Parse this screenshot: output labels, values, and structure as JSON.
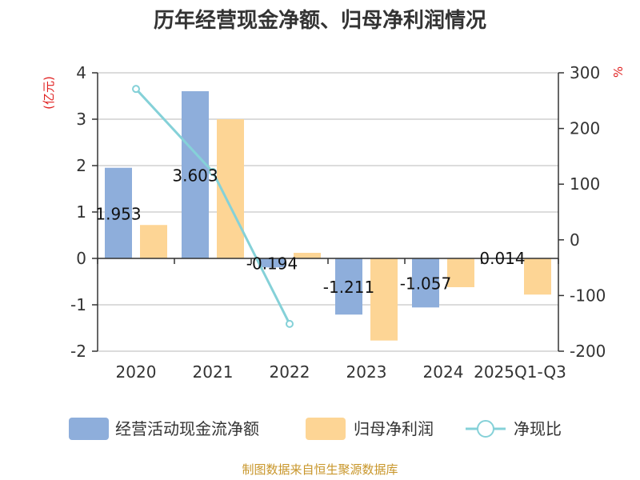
{
  "title": "历年经营现金净额、归母净利润情况",
  "source": "制图数据来自恒生聚源数据库",
  "left_unit": "(亿元)",
  "right_unit": "%",
  "colors": {
    "cash": "#8eaedb",
    "profit": "#fdd595",
    "ratio": "#85d1d8",
    "unit": "#e02020",
    "source": "#c8962a",
    "grid": "#c8c8c8",
    "axis": "#333333"
  },
  "legend": [
    {
      "label": "经营活动现金流净额",
      "type": "bar"
    },
    {
      "label": "归母净利润",
      "type": "bar"
    },
    {
      "label": "净现比",
      "type": "line"
    }
  ],
  "chart_data": {
    "type": "bar",
    "categories": [
      "2020",
      "2021",
      "2022",
      "2023",
      "2024",
      "2025Q1-Q3"
    ],
    "series": [
      {
        "name": "经营活动现金流净额",
        "axis": "left",
        "type": "bar",
        "values": [
          1.953,
          3.603,
          -0.194,
          -1.211,
          -1.057,
          0.014
        ],
        "labels": [
          "1.953",
          "3.603",
          "-0.194",
          "-1.211",
          "-1.057",
          "0.014"
        ]
      },
      {
        "name": "归母净利润",
        "axis": "left",
        "type": "bar",
        "values": [
          0.72,
          3.0,
          0.12,
          -1.77,
          -0.62,
          -0.78
        ]
      },
      {
        "name": "净现比",
        "axis": "right",
        "type": "line",
        "values": [
          271,
          122,
          -151,
          null,
          null,
          null
        ]
      }
    ],
    "left_axis": {
      "ylim": [
        -2,
        4
      ],
      "ticks": [
        "-2",
        "-1",
        "0",
        "1",
        "2",
        "3",
        "4"
      ]
    },
    "right_axis": {
      "ylim": [
        -200,
        300
      ],
      "ticks": [
        "-200",
        "-100",
        "0",
        "100",
        "200",
        "300"
      ]
    },
    "grid": true,
    "legend_position": "bottom"
  }
}
